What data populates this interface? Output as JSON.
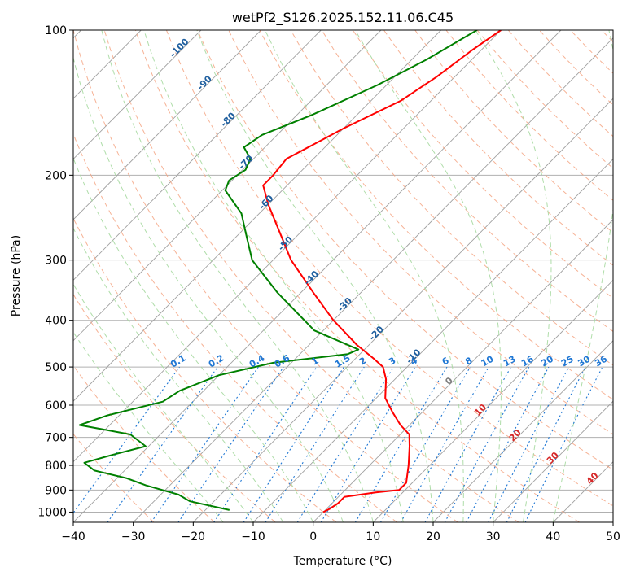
{
  "chart_data": {
    "type": "line",
    "title": "wetPf2_S126.2025.152.11.06.C45",
    "xlabel": "Temperature (°C)",
    "ylabel": "Pressure (hPa)",
    "xlim": [
      -40,
      50
    ],
    "ylim": [
      1050,
      100
    ],
    "y_scale": "log",
    "x_ticks": [
      -40,
      -30,
      -20,
      -10,
      0,
      10,
      20,
      30,
      40,
      50
    ],
    "y_ticks": [
      100,
      200,
      300,
      400,
      500,
      600,
      700,
      800,
      900,
      1000
    ],
    "grid": true,
    "skew": "skew-T log-p",
    "colors": {
      "temperature": "#ff0000",
      "dewpoint": "#008000",
      "dry_adiabats": "#f4a582",
      "moist_adiabats": "#a6d9a0",
      "isotherms": "#7f7f7f",
      "mixing_ratio": "#1f77d4",
      "ice_lines": "#1f5f9f",
      "dry_label": "#d62728",
      "zero_label": "#808080",
      "dry_curve_left": "#d2b48c"
    },
    "series": [
      {
        "points": [
          {
            "p": 100,
            "t": -50.0
          },
          {
            "p": 110,
            "t": -51.5
          },
          {
            "p": 125,
            "t": -53.0
          },
          {
            "p": 140,
            "t": -55.0
          },
          {
            "p": 160,
            "t": -60.0
          },
          {
            "p": 185,
            "t": -64.5
          },
          {
            "p": 200,
            "t": -64.0
          },
          {
            "p": 210,
            "t": -64.0
          },
          {
            "p": 230,
            "t": -60.0
          },
          {
            "p": 260,
            "t": -54.0
          },
          {
            "p": 300,
            "t": -47.0
          },
          {
            "p": 350,
            "t": -38.0
          },
          {
            "p": 400,
            "t": -30.0
          },
          {
            "p": 450,
            "t": -22.0
          },
          {
            "p": 480,
            "t": -17.0
          },
          {
            "p": 500,
            "t": -14.0
          },
          {
            "p": 530,
            "t": -11.5
          },
          {
            "p": 580,
            "t": -8.5
          },
          {
            "p": 620,
            "t": -5.0
          },
          {
            "p": 660,
            "t": -1.5
          },
          {
            "p": 690,
            "t": 1.5
          },
          {
            "p": 730,
            "t": 3.5
          },
          {
            "p": 800,
            "t": 6.5
          },
          {
            "p": 870,
            "t": 9.0
          },
          {
            "p": 900,
            "t": 9.0
          },
          {
            "p": 910,
            "t": 5.5
          },
          {
            "p": 930,
            "t": 1.0
          },
          {
            "p": 960,
            "t": 1.0
          },
          {
            "p": 985,
            "t": 0.5
          },
          {
            "p": 1000,
            "t": 0.0
          }
        ]
      },
      {
        "points": [
          {
            "p": 100,
            "t": -54.0
          },
          {
            "p": 115,
            "t": -57.5
          },
          {
            "p": 130,
            "t": -61.5
          },
          {
            "p": 150,
            "t": -67.5
          },
          {
            "p": 165,
            "t": -72.5
          },
          {
            "p": 175,
            "t": -73.5
          },
          {
            "p": 185,
            "t": -70.5
          },
          {
            "p": 195,
            "t": -69.5
          },
          {
            "p": 205,
            "t": -70.5
          },
          {
            "p": 215,
            "t": -69.5
          },
          {
            "p": 240,
            "t": -63.0
          },
          {
            "p": 270,
            "t": -58.0
          },
          {
            "p": 300,
            "t": -53.5
          },
          {
            "p": 350,
            "t": -44.0
          },
          {
            "p": 420,
            "t": -31.5
          },
          {
            "p": 460,
            "t": -21.0
          },
          {
            "p": 470,
            "t": -22.0
          },
          {
            "p": 490,
            "t": -33.0
          },
          {
            "p": 520,
            "t": -40.0
          },
          {
            "p": 560,
            "t": -44.0
          },
          {
            "p": 590,
            "t": -45.0
          },
          {
            "p": 630,
            "t": -52.0
          },
          {
            "p": 660,
            "t": -55.0
          },
          {
            "p": 690,
            "t": -45.0
          },
          {
            "p": 730,
            "t": -40.5
          },
          {
            "p": 760,
            "t": -44.5
          },
          {
            "p": 790,
            "t": -48.0
          },
          {
            "p": 820,
            "t": -45.0
          },
          {
            "p": 850,
            "t": -38.5
          },
          {
            "p": 880,
            "t": -34.0
          },
          {
            "p": 920,
            "t": -27.0
          },
          {
            "p": 950,
            "t": -24.0
          },
          {
            "p": 990,
            "t": -16.0
          }
        ]
      }
    ],
    "mixing_ratio_labels": [
      "0.1",
      "0.2",
      "0.4",
      "0.6",
      "1",
      "1.5",
      "2",
      "3",
      "4",
      "6",
      "8",
      "10",
      "13",
      "16",
      "20",
      "25",
      "30",
      "36"
    ],
    "mixing_ratio_values": [
      0.1,
      0.2,
      0.4,
      0.6,
      1,
      1.5,
      2,
      3,
      4,
      6,
      8,
      10,
      13,
      16,
      20,
      25,
      30,
      36
    ],
    "ice_labels": [
      "-100",
      "-90",
      "-80",
      "-70",
      "-60",
      "-50",
      "-40",
      "-30",
      "-20",
      "-10"
    ],
    "dry_labels": [
      "0",
      "10",
      "20",
      "30",
      "40"
    ]
  }
}
